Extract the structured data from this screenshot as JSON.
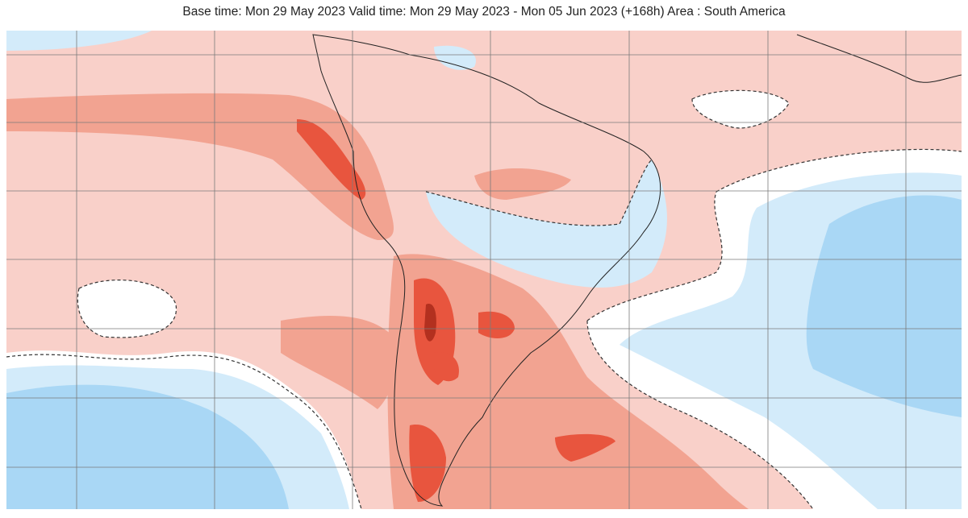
{
  "header": {
    "title": "Base time: Mon 29 May 2023 Valid time: Mon 29 May 2023 - Mon 05 Jun 2023 (+168h) Area : South America"
  },
  "map": {
    "region": "South America",
    "colors": {
      "light_positive": "#f9d0c9",
      "medium_positive": "#f2a391",
      "strong_positive": "#e8553e",
      "very_strong_positive": "#b3301f",
      "neutral": "#ffffff",
      "light_negative": "#d3ebfa",
      "medium_negative": "#a9d7f5",
      "gridline": "#7a7a7a",
      "coastline": "#222222"
    }
  }
}
